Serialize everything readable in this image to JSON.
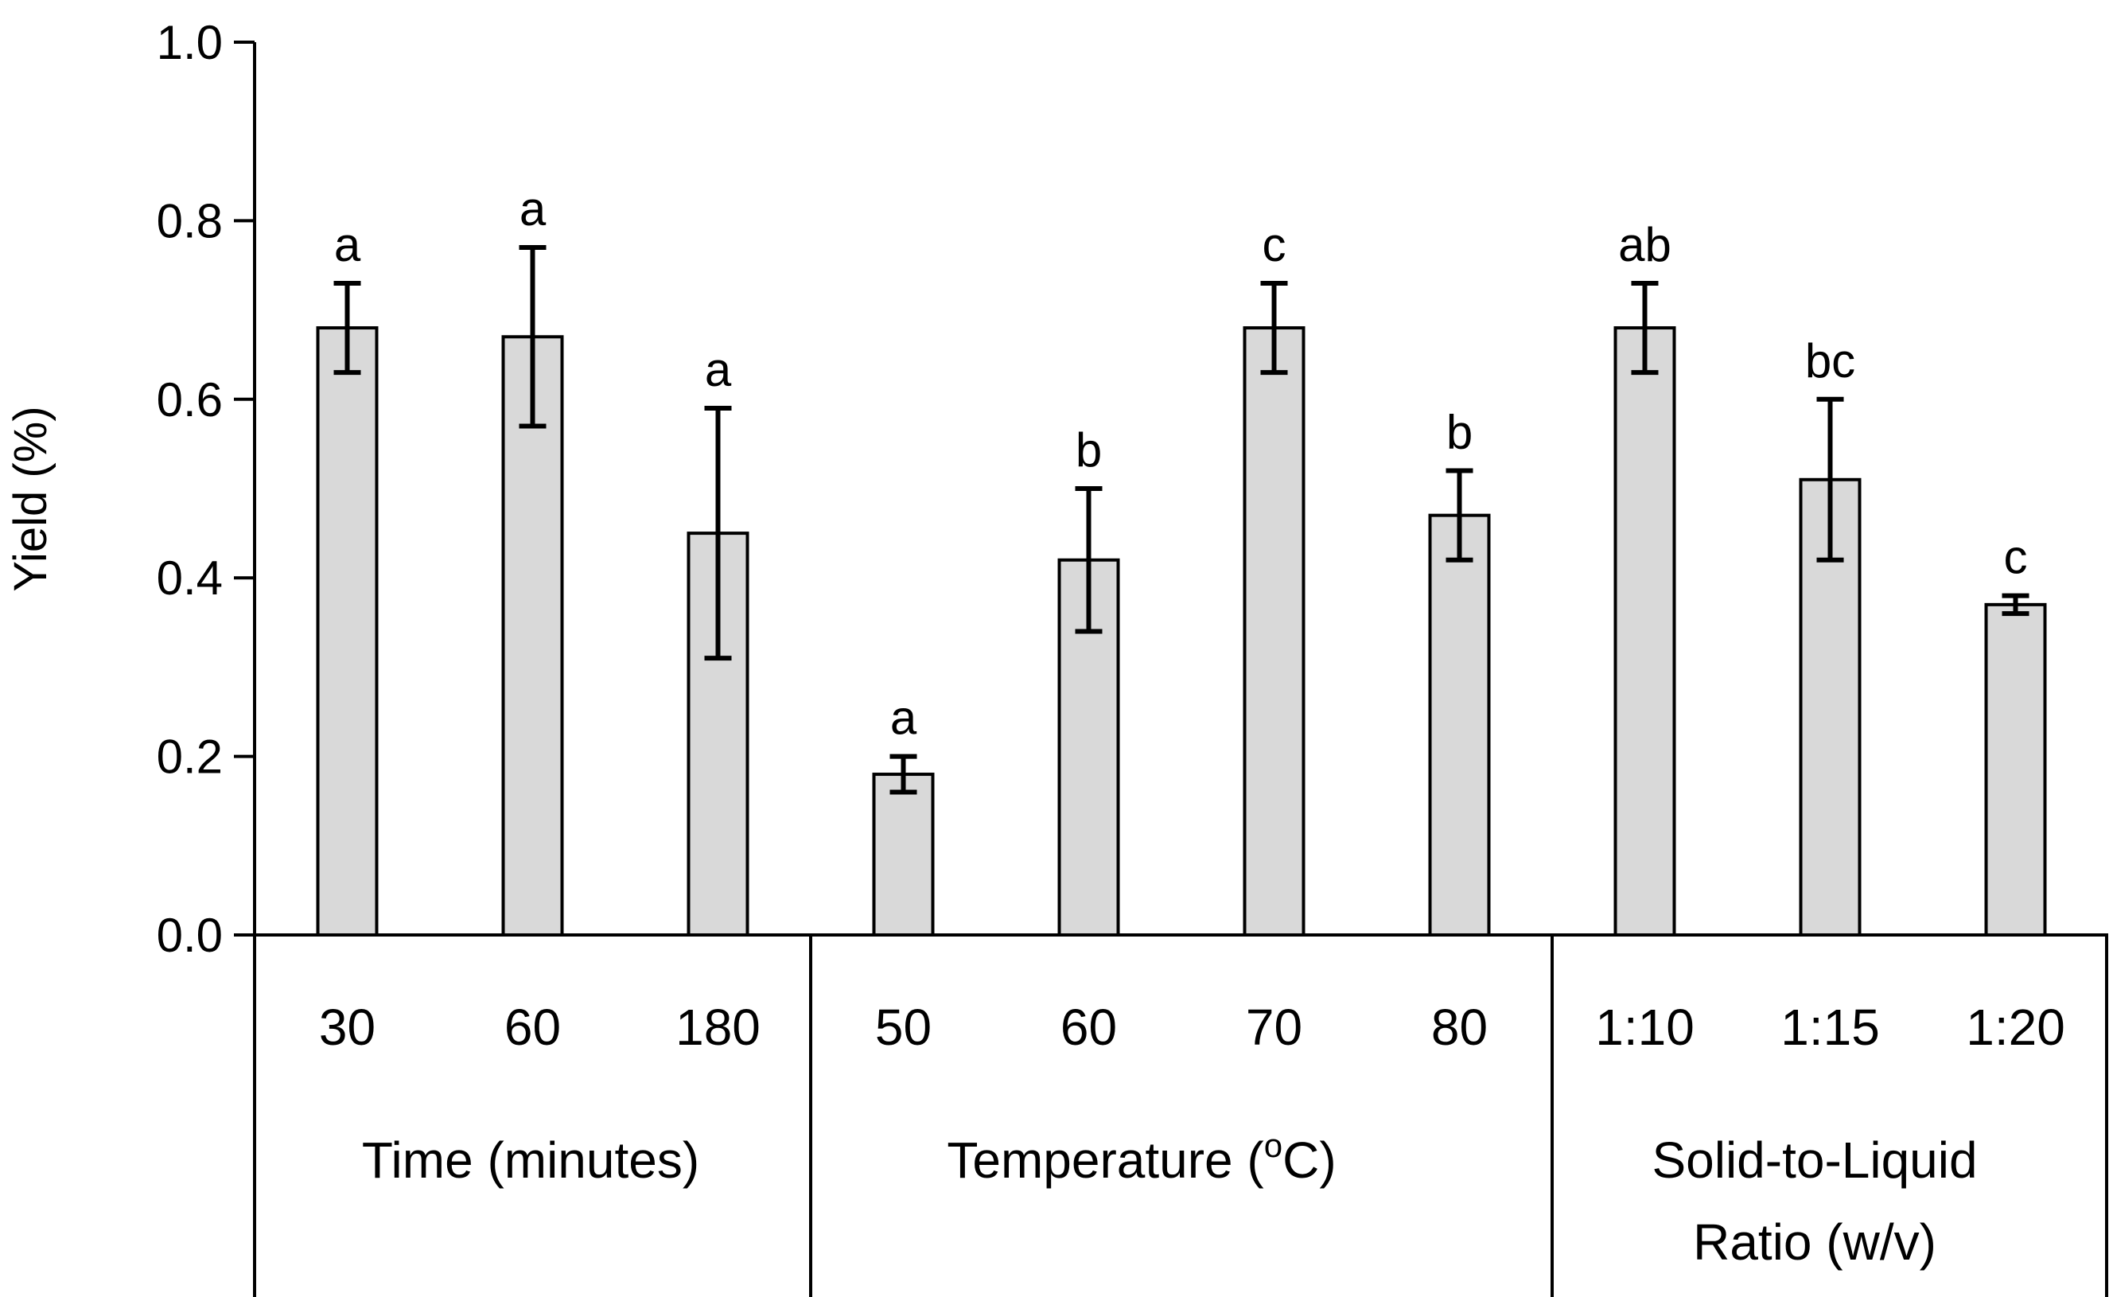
{
  "chart_data": {
    "type": "bar",
    "ylabel": "Yield (%)",
    "xlabel": "",
    "ylim": [
      0,
      1.0
    ],
    "yticks": [
      "0.0",
      "0.2",
      "0.4",
      "0.6",
      "0.8",
      "1.0"
    ],
    "bar_color": "#d9d9d9",
    "groups": [
      {
        "label": "Time (minutes)",
        "categories": [
          "30",
          "60",
          "180"
        ]
      },
      {
        "label_main": "Temperature (",
        "label_sup": "o",
        "label_end": "C)",
        "categories": [
          "50",
          "60",
          "70",
          "80"
        ]
      },
      {
        "label_line1": "Solid-to-Liquid",
        "label_line2": "Ratio (w/v)",
        "categories": [
          "1:10",
          "1:15",
          "1:20"
        ]
      }
    ],
    "categories": [
      "30",
      "60",
      "180",
      "50",
      "60",
      "70",
      "80",
      "1:10",
      "1:15",
      "1:20"
    ],
    "values": [
      0.68,
      0.67,
      0.45,
      0.18,
      0.42,
      0.68,
      0.47,
      0.68,
      0.51,
      0.37
    ],
    "errors": [
      0.05,
      0.1,
      0.14,
      0.02,
      0.08,
      0.05,
      0.05,
      0.05,
      0.09,
      0.01
    ],
    "significance_letters": [
      "a",
      "a",
      "a",
      "a",
      "b",
      "c",
      "b",
      "ab",
      "bc",
      "c"
    ]
  }
}
